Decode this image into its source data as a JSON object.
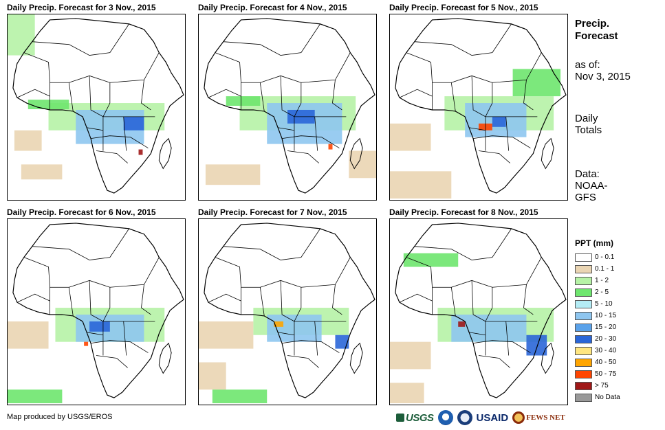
{
  "panels": [
    {
      "title": "Daily Precip. Forecast for 3 Nov., 2015"
    },
    {
      "title": "Daily Precip. Forecast for 4 Nov., 2015"
    },
    {
      "title": "Daily Precip. Forecast for 5 Nov., 2015"
    },
    {
      "title": "Daily Precip. Forecast for 6 Nov., 2015"
    },
    {
      "title": "Daily Precip. Forecast for 7 Nov., 2015"
    },
    {
      "title": "Daily Precip. Forecast for 8 Nov., 2015"
    }
  ],
  "side": {
    "title_line1": "Precip.",
    "title_line2": "Forecast",
    "asof_line1": "as of:",
    "asof_line2": "Nov 3, 2015",
    "totals_line1": "Daily",
    "totals_line2": "Totals",
    "data_line1": "Data:",
    "data_line2": "NOAA-",
    "data_line3": "GFS"
  },
  "legend": {
    "title": "PPT (mm)",
    "items": [
      {
        "label": "0 - 0.1",
        "color": "#ffffff"
      },
      {
        "label": "0.1 - 1",
        "color": "#ead5b3"
      },
      {
        "label": "1 - 2",
        "color": "#b6f2a6"
      },
      {
        "label": "2 - 5",
        "color": "#6ee66e"
      },
      {
        "label": "5 - 10",
        "color": "#b4ecf5"
      },
      {
        "label": "10 - 15",
        "color": "#8ec6f0"
      },
      {
        "label": "15 - 20",
        "color": "#5aa2ea"
      },
      {
        "label": "20 - 30",
        "color": "#2a66d8"
      },
      {
        "label": "30 - 40",
        "color": "#ffe680"
      },
      {
        "label": "40 - 50",
        "color": "#ffa500"
      },
      {
        "label": "50 - 75",
        "color": "#ff4500"
      },
      {
        "label": "> 75",
        "color": "#a01818"
      },
      {
        "label": "No Data",
        "color": "#999999"
      }
    ]
  },
  "credit": "Map produced by USGS/EROS",
  "logos": {
    "usgs": "USGS",
    "usaid": "USAID",
    "fews": "FEWS NET"
  }
}
